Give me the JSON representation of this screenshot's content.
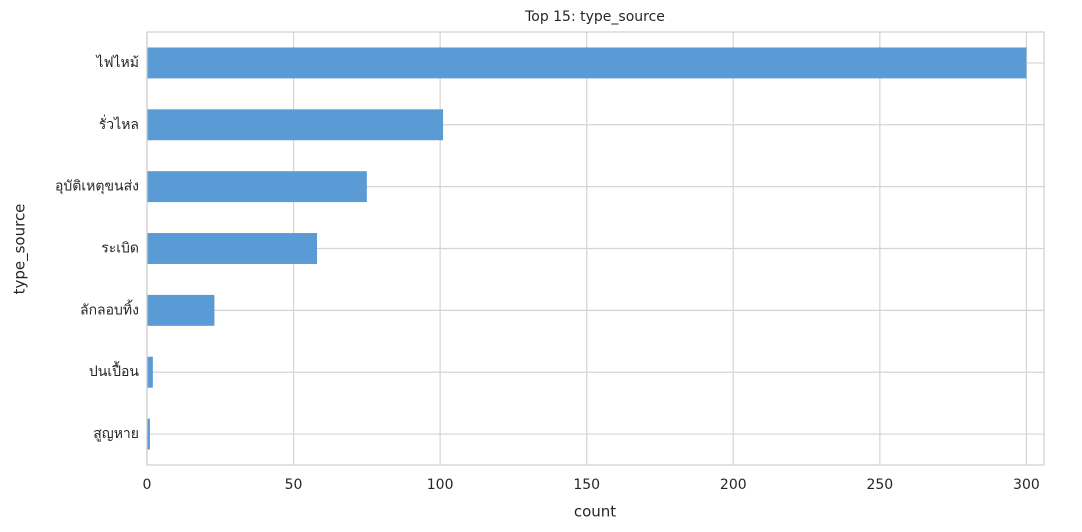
{
  "chart_data": {
    "type": "barh",
    "title": "Top 15: type_source",
    "x_label": "count",
    "y_label": "type_source",
    "categories": [
      "ไฟไหม้",
      "รั่วไหล",
      "อุบัติเหตุขนส่ง",
      "ระเบิด",
      "ลักลอบทิ้ง",
      "ปนเปื้อน",
      "สูญหาย"
    ],
    "values": [
      300,
      101,
      75,
      58,
      23,
      2,
      1
    ],
    "color": "#5b9bd5",
    "xlim": [
      0,
      306
    ],
    "xticks": [
      0,
      50,
      100,
      150,
      200,
      250,
      300
    ],
    "grid": true
  }
}
